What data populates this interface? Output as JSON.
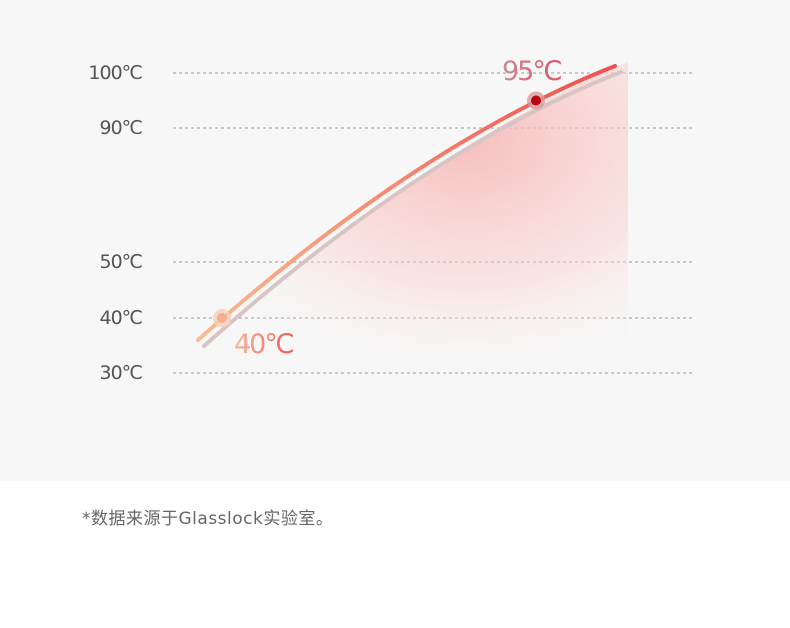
{
  "chart_data": {
    "type": "line",
    "title": "",
    "xlabel": "",
    "ylabel": "",
    "y_ticks": [
      {
        "value": 100,
        "label": "100℃"
      },
      {
        "value": 90,
        "label": "90℃"
      },
      {
        "value": 50,
        "label": "50℃"
      },
      {
        "value": 40,
        "label": "40℃"
      },
      {
        "value": 30,
        "label": "30℃"
      }
    ],
    "grid": true,
    "points": [
      {
        "value": 40,
        "label": "40℃",
        "color": "#f4b08a"
      },
      {
        "value": 95,
        "label": "95℃",
        "color": "#b5070f"
      }
    ],
    "line_colors": [
      "#f9bb8f",
      "#ee5050"
    ]
  },
  "footnote": "*数据来源于Glasslock实验室。"
}
